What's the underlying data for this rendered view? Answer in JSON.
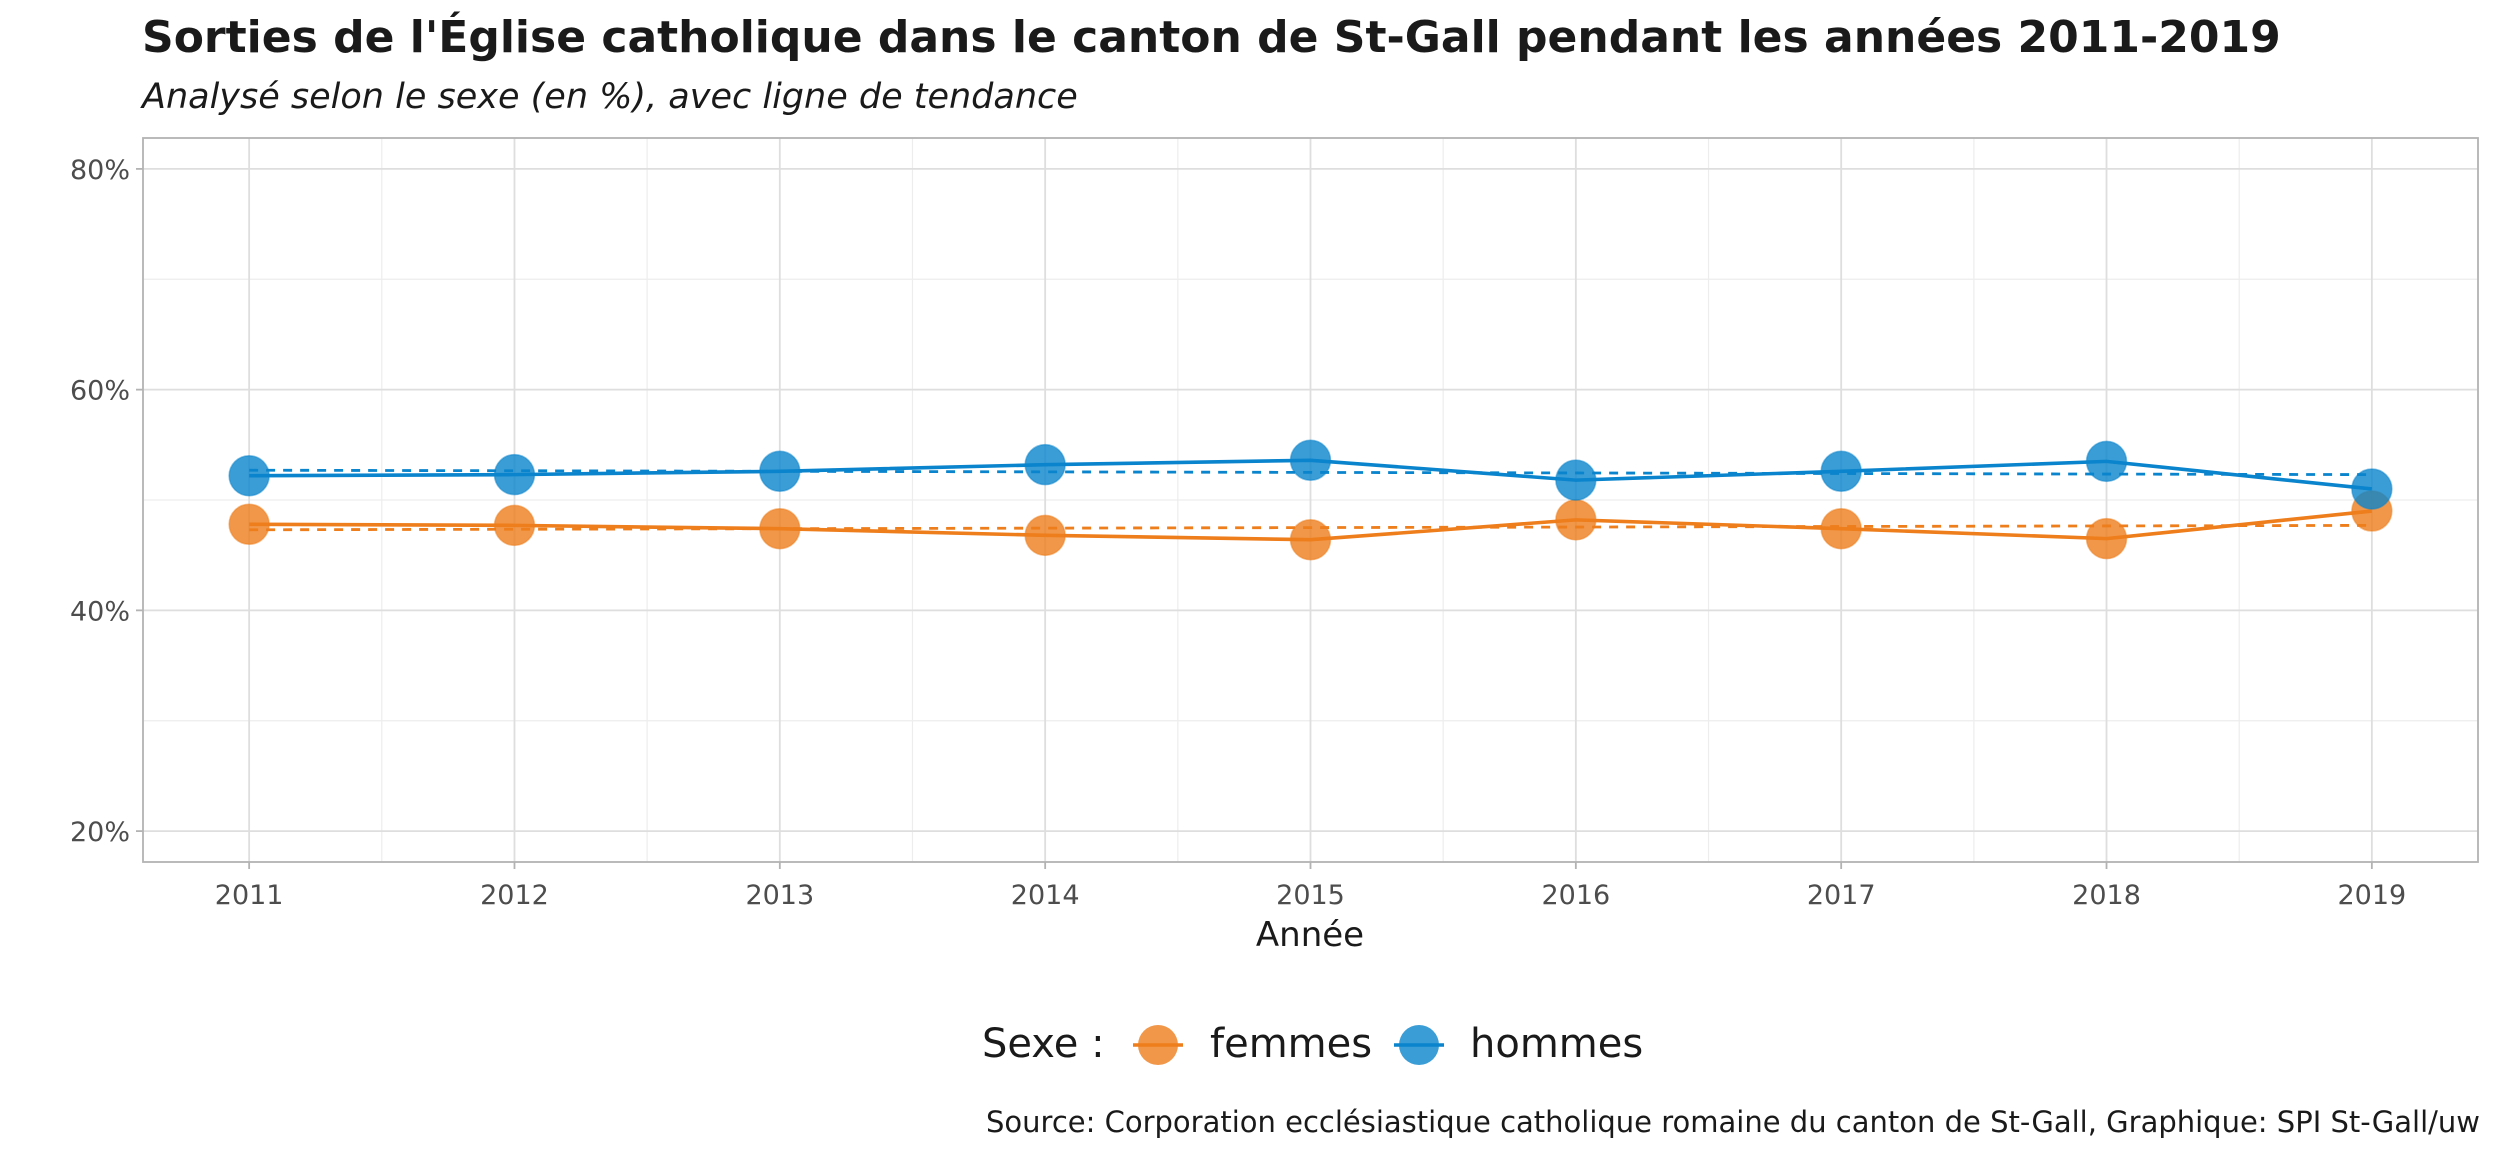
{
  "chart_data": {
    "type": "line",
    "title": "Sorties de l'Église catholique dans le canton de St-Gall pendant les années 2011-2019",
    "subtitle": "Analysé selon le sexe (en %), avec ligne de tendance",
    "xlabel": "Année",
    "ylabel": "",
    "caption": "Source: Corporation ecclésiastique catholique romaine du canton de St-Gall, Graphique: SPI St-Gall/uw",
    "x": [
      2011,
      2012,
      2013,
      2014,
      2015,
      2016,
      2017,
      2018,
      2019
    ],
    "x_tick_labels": [
      "2011",
      "2012",
      "2013",
      "2014",
      "2015",
      "2016",
      "2017",
      "2018",
      "2019"
    ],
    "y_ticks": [
      20,
      40,
      60,
      80
    ],
    "y_tick_labels": [
      "20%",
      "40%",
      "60%",
      "80%"
    ],
    "ylim": [
      17.2,
      82.8
    ],
    "xlim": [
      2010.6,
      2019.4
    ],
    "grid": true,
    "legend": {
      "title": "Sexe :",
      "position": "bottom"
    },
    "series": [
      {
        "name": "femmes",
        "color": "#EE7D1B",
        "values": [
          47.8,
          47.7,
          47.4,
          46.8,
          46.4,
          48.2,
          47.4,
          46.5,
          49.0
        ],
        "trend": [
          47.3,
          47.35,
          47.4,
          47.45,
          47.5,
          47.55,
          47.6,
          47.65,
          47.7
        ]
      },
      {
        "name": "hommes",
        "color": "#0A84CC",
        "values": [
          52.2,
          52.3,
          52.6,
          53.2,
          53.6,
          51.8,
          52.6,
          53.5,
          51.0
        ],
        "trend": [
          52.7,
          52.65,
          52.6,
          52.55,
          52.5,
          52.45,
          52.4,
          52.35,
          52.3
        ]
      }
    ]
  }
}
